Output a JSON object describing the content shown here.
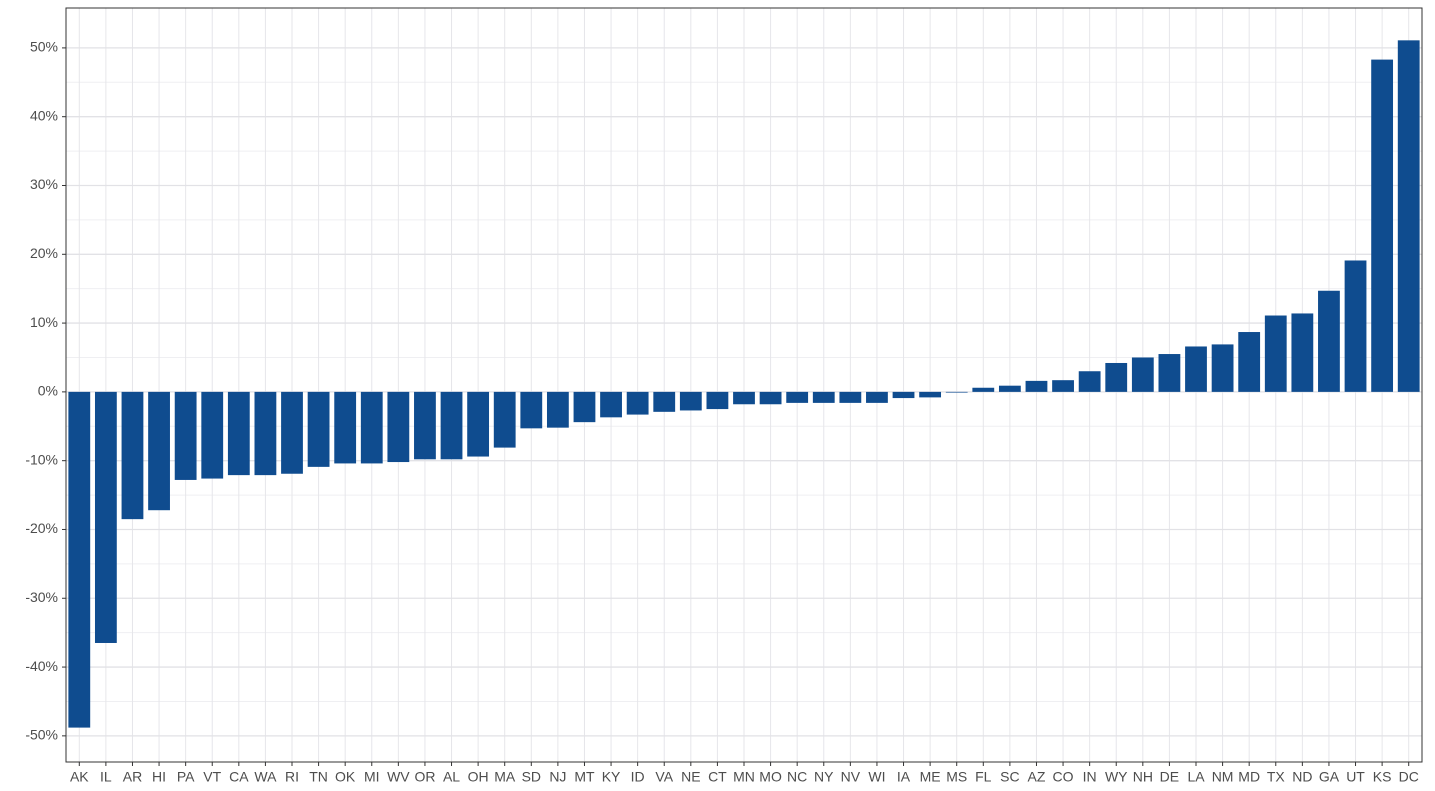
{
  "chart_data": {
    "type": "bar",
    "categories": [
      "AK",
      "IL",
      "AR",
      "HI",
      "PA",
      "VT",
      "CA",
      "WA",
      "RI",
      "TN",
      "OK",
      "MI",
      "WV",
      "OR",
      "AL",
      "OH",
      "MA",
      "SD",
      "NJ",
      "MT",
      "KY",
      "ID",
      "VA",
      "NE",
      "CT",
      "MN",
      "MO",
      "NC",
      "NY",
      "NV",
      "WI",
      "IA",
      "ME",
      "MS",
      "FL",
      "SC",
      "AZ",
      "CO",
      "IN",
      "WY",
      "NH",
      "DE",
      "LA",
      "NM",
      "MD",
      "TX",
      "ND",
      "GA",
      "UT",
      "KS",
      "DC"
    ],
    "values": [
      -48.8,
      -36.5,
      -18.5,
      -17.2,
      -12.8,
      -12.6,
      -12.1,
      -12.1,
      -11.9,
      -10.9,
      -10.4,
      -10.4,
      -10.2,
      -9.8,
      -9.8,
      -9.4,
      -8.1,
      -5.3,
      -5.2,
      -4.4,
      -3.7,
      -3.3,
      -2.9,
      -2.7,
      -2.5,
      -1.8,
      -1.8,
      -1.6,
      -1.6,
      -1.6,
      -1.6,
      -0.9,
      -0.8,
      -0.1,
      0.6,
      0.9,
      1.6,
      1.7,
      3.0,
      4.2,
      5.0,
      5.5,
      6.6,
      6.9,
      8.7,
      11.1,
      11.4,
      14.7,
      19.1,
      48.3,
      51.1
    ],
    "color": "#0f4c8f",
    "ylim": [
      -53.8,
      55.8
    ],
    "yticks": [
      {
        "value": -50,
        "label": "-50%"
      },
      {
        "value": -40,
        "label": "-40%"
      },
      {
        "value": -30,
        "label": "-30%"
      },
      {
        "value": -20,
        "label": "-20%"
      },
      {
        "value": -10,
        "label": "-10%"
      },
      {
        "value": 0,
        "label": "0%"
      },
      {
        "value": 10,
        "label": "10%"
      },
      {
        "value": 20,
        "label": "20%"
      },
      {
        "value": 30,
        "label": "30%"
      },
      {
        "value": 40,
        "label": "40%"
      },
      {
        "value": 50,
        "label": "50%"
      }
    ],
    "grid": true
  }
}
